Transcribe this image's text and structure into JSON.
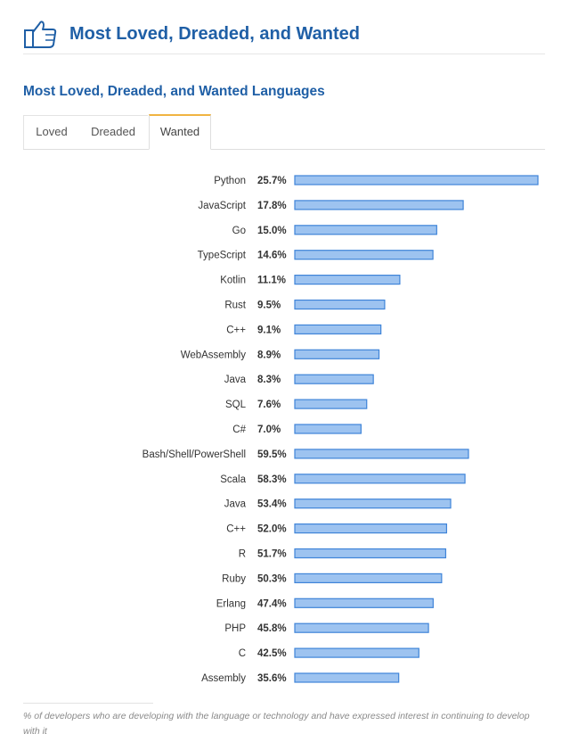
{
  "header": {
    "title": "Most Loved, Dreaded, and Wanted",
    "icon": "thumbs-up-icon"
  },
  "section": {
    "title": "Most Loved, Dreaded, and Wanted Languages"
  },
  "tabs": [
    {
      "label": "Loved",
      "active": false
    },
    {
      "label": "Dreaded",
      "active": false
    },
    {
      "label": "Wanted",
      "active": true
    }
  ],
  "colors": {
    "brand_blue": "#1f5fa6",
    "bar_fill": "#9dc3f0",
    "bar_stroke": "#3f84d8",
    "active_tab_accent": "#f0b442"
  },
  "chart_data": {
    "type": "bar",
    "orientation": "horizontal",
    "categories": [
      "Python",
      "JavaScript",
      "Go",
      "TypeScript",
      "Kotlin",
      "Rust",
      "C++",
      "WebAssembly",
      "Java",
      "SQL",
      "C#",
      "Bash/Shell/PowerShell",
      "Scala",
      "Java",
      "C++",
      "R",
      "Ruby",
      "Erlang",
      "PHP",
      "C",
      "Assembly"
    ],
    "values": [
      25.7,
      17.8,
      15.0,
      14.6,
      11.1,
      9.5,
      9.1,
      8.9,
      8.3,
      7.6,
      7.0,
      59.5,
      58.3,
      53.4,
      52.0,
      51.7,
      50.3,
      47.4,
      45.8,
      42.5,
      35.6
    ],
    "labels": [
      "25.7%",
      "17.8%",
      "15.0%",
      "14.6%",
      "11.1%",
      "9.5%",
      "9.1%",
      "8.9%",
      "8.3%",
      "7.6%",
      "7.0%",
      "59.5%",
      "58.3%",
      "53.4%",
      "52.0%",
      "51.7%",
      "50.3%",
      "47.4%",
      "45.8%",
      "42.5%",
      "35.6%"
    ],
    "title": "",
    "xlabel": "",
    "ylabel": ""
  },
  "footnote": "% of developers who are developing with the language or technology and have expressed interest in continuing to develop with it"
}
